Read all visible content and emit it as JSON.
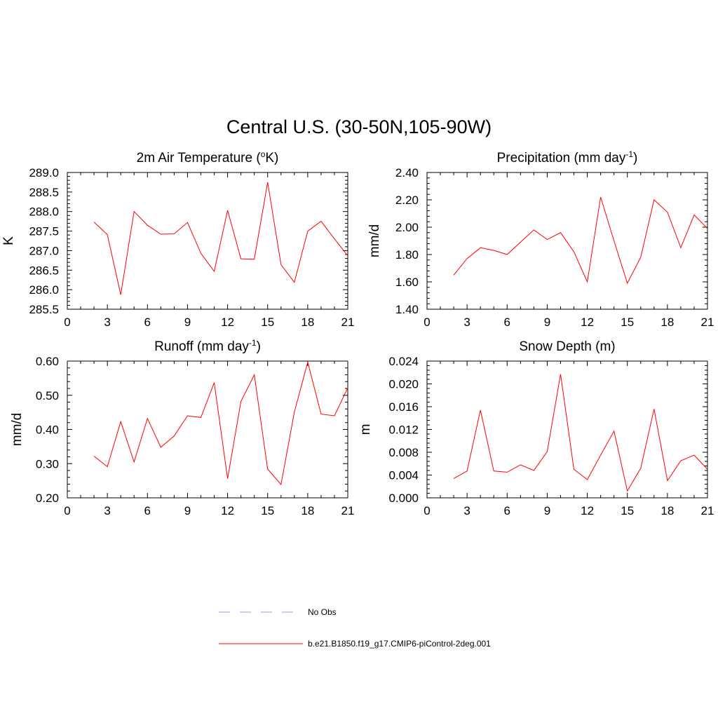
{
  "figure": {
    "title": "Central U.S. (30-50N,105-90W)"
  },
  "chart_data": [
    {
      "type": "line",
      "title": "2m Air Temperature (",
      "title_sup": "o",
      "title_suffix": "K)",
      "ylabel": "K",
      "xlim": [
        0,
        21
      ],
      "ylim": [
        285.5,
        289.0
      ],
      "xticks": [
        "0",
        "3",
        "6",
        "9",
        "12",
        "15",
        "18",
        "21"
      ],
      "yticks": [
        "285.5",
        "286.0",
        "286.5",
        "287.0",
        "287.5",
        "288.0",
        "288.5",
        "289.0"
      ],
      "series": [
        {
          "color": "#ff0000",
          "x": [
            2,
            3,
            4,
            5,
            6,
            7,
            8,
            9,
            10,
            11,
            12,
            13,
            14,
            15,
            16,
            17,
            18,
            19,
            20,
            21
          ],
          "y": [
            287.73,
            287.41,
            285.87,
            288.0,
            287.65,
            287.42,
            287.43,
            287.72,
            286.93,
            286.47,
            288.03,
            286.79,
            286.78,
            288.75,
            286.64,
            286.19,
            287.5,
            287.75,
            287.3,
            286.87
          ]
        }
      ]
    },
    {
      "type": "line",
      "title": "Precipitation (mm day",
      "title_sup": "-1",
      "title_suffix": ")",
      "ylabel": "mm/d",
      "xlim": [
        0,
        21
      ],
      "ylim": [
        1.4,
        2.4
      ],
      "xticks": [
        "0",
        "3",
        "6",
        "9",
        "12",
        "15",
        "18",
        "21"
      ],
      "yticks": [
        "1.40",
        "1.60",
        "1.80",
        "2.00",
        "2.20",
        "2.40"
      ],
      "series": [
        {
          "color": "#ff0000",
          "x": [
            2,
            3,
            4,
            5,
            6,
            7,
            8,
            9,
            10,
            11,
            12,
            13,
            14,
            15,
            16,
            17,
            18,
            19,
            20,
            21
          ],
          "y": [
            1.65,
            1.77,
            1.85,
            1.83,
            1.8,
            1.89,
            1.98,
            1.91,
            1.96,
            1.82,
            1.6,
            2.22,
            1.9,
            1.59,
            1.78,
            2.2,
            2.11,
            1.85,
            2.09,
            1.99
          ]
        }
      ]
    },
    {
      "type": "line",
      "title": "Runoff (mm day",
      "title_sup": "-1",
      "title_suffix": ")",
      "ylabel": "mm/d",
      "xlim": [
        0,
        21
      ],
      "ylim": [
        0.2,
        0.6
      ],
      "xticks": [
        "0",
        "3",
        "6",
        "9",
        "12",
        "15",
        "18",
        "21"
      ],
      "yticks": [
        "0.20",
        "0.30",
        "0.40",
        "0.50",
        "0.60"
      ],
      "series": [
        {
          "color": "#ff0000",
          "x": [
            2,
            3,
            4,
            5,
            6,
            7,
            8,
            9,
            10,
            11,
            12,
            13,
            14,
            15,
            16,
            17,
            18,
            19,
            20,
            21
          ],
          "y": [
            0.322,
            0.291,
            0.423,
            0.305,
            0.432,
            0.348,
            0.381,
            0.44,
            0.435,
            0.537,
            0.256,
            0.482,
            0.56,
            0.284,
            0.239,
            0.451,
            0.597,
            0.445,
            0.44,
            0.522
          ]
        }
      ]
    },
    {
      "type": "line",
      "title": "Snow Depth (m)",
      "title_sup": "",
      "title_suffix": "",
      "ylabel": "m",
      "xlim": [
        0,
        21
      ],
      "ylim": [
        0.0,
        0.024
      ],
      "xticks": [
        "0",
        "3",
        "6",
        "9",
        "12",
        "15",
        "18",
        "21"
      ],
      "yticks": [
        "0.000",
        "0.004",
        "0.008",
        "0.012",
        "0.016",
        "0.020",
        "0.024"
      ],
      "series": [
        {
          "color": "#ff0000",
          "x": [
            2,
            3,
            4,
            5,
            6,
            7,
            8,
            9,
            10,
            11,
            12,
            13,
            14,
            15,
            16,
            17,
            18,
            19,
            20,
            21
          ],
          "y": [
            0.0034,
            0.0047,
            0.0154,
            0.0047,
            0.0045,
            0.0058,
            0.0048,
            0.0081,
            0.0217,
            0.005,
            0.0032,
            0.0075,
            0.0117,
            0.0012,
            0.0052,
            0.0156,
            0.003,
            0.0065,
            0.0075,
            0.005
          ]
        }
      ]
    }
  ],
  "legend": [
    {
      "label": "No Obs",
      "color": "#9999ee",
      "dashed": true
    },
    {
      "label": "b.e21.B1850.f19_g17.CMIP6-piControl-2deg.001",
      "color": "#ff0000",
      "dashed": false
    }
  ]
}
